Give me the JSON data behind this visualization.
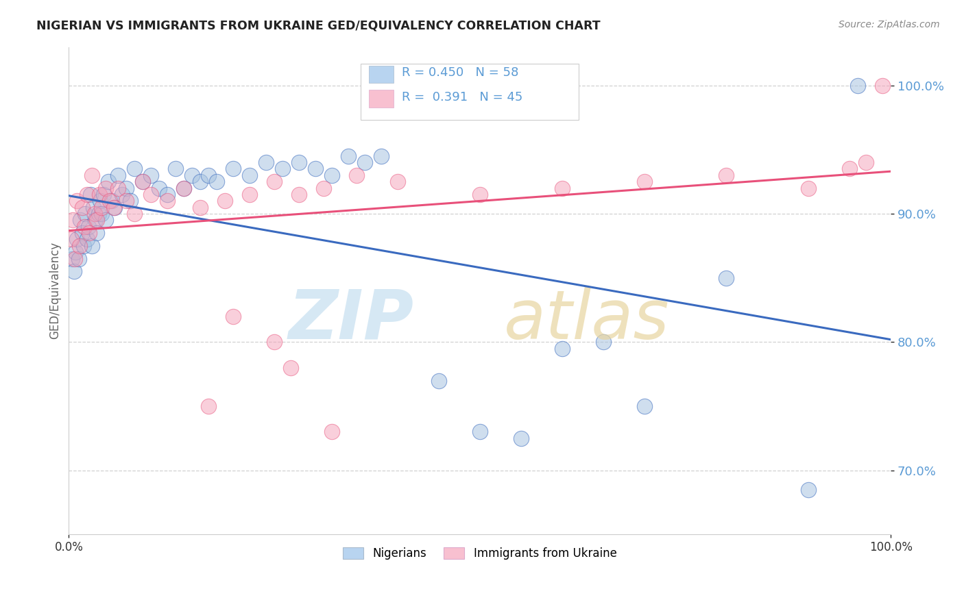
{
  "title": "NIGERIAN VS IMMIGRANTS FROM UKRAINE GED/EQUIVALENCY CORRELATION CHART",
  "source": "Source: ZipAtlas.com",
  "ylabel": "GED/Equivalency",
  "R_nigerian": 0.45,
  "N_nigerian": 58,
  "R_ukraine": 0.391,
  "N_ukraine": 45,
  "nigerian_color": "#a8c4e0",
  "ukraine_color": "#f4a0b8",
  "nigerian_line_color": "#3a6abf",
  "ukraine_line_color": "#e8507a",
  "nigerian_legend_color": "#b8d4f0",
  "ukraine_legend_color": "#f8c0d0",
  "background_color": "#ffffff",
  "grid_color": "#cccccc",
  "ytick_color": "#5b9bd5",
  "xlim": [
    0,
    100
  ],
  "ylim": [
    65,
    103
  ],
  "yticks": [
    70,
    80,
    90,
    100
  ],
  "nigerian_x": [
    0.4,
    0.6,
    0.8,
    1.0,
    1.2,
    1.4,
    1.6,
    1.8,
    2.0,
    2.2,
    2.4,
    2.6,
    2.8,
    3.0,
    3.2,
    3.4,
    3.6,
    3.8,
    4.0,
    4.2,
    4.5,
    4.8,
    5.2,
    5.6,
    6.0,
    6.5,
    7.0,
    7.5,
    8.0,
    9.0,
    10.0,
    11.0,
    12.0,
    13.0,
    14.0,
    15.0,
    16.0,
    17.0,
    18.0,
    20.0,
    22.0,
    24.0,
    26.0,
    28.0,
    30.0,
    32.0,
    34.0,
    36.0,
    38.0,
    45.0,
    50.0,
    55.0,
    60.0,
    65.0,
    70.0,
    80.0,
    90.0,
    96.0
  ],
  "nigerian_y": [
    86.5,
    85.5,
    87.0,
    88.0,
    86.5,
    89.5,
    88.5,
    87.5,
    90.0,
    88.0,
    89.0,
    91.5,
    87.5,
    90.5,
    89.5,
    88.5,
    90.0,
    91.0,
    90.0,
    91.5,
    89.5,
    92.5,
    91.0,
    90.5,
    93.0,
    91.5,
    92.0,
    91.0,
    93.5,
    92.5,
    93.0,
    92.0,
    91.5,
    93.5,
    92.0,
    93.0,
    92.5,
    93.0,
    92.5,
    93.5,
    93.0,
    94.0,
    93.5,
    94.0,
    93.5,
    93.0,
    94.5,
    94.0,
    94.5,
    77.0,
    73.0,
    72.5,
    79.5,
    80.0,
    75.0,
    85.0,
    68.5,
    100.0
  ],
  "ukraine_x": [
    0.3,
    0.5,
    0.7,
    1.0,
    1.3,
    1.6,
    1.9,
    2.2,
    2.5,
    2.8,
    3.1,
    3.4,
    3.7,
    4.0,
    4.5,
    5.0,
    5.5,
    6.0,
    7.0,
    8.0,
    9.0,
    10.0,
    12.0,
    14.0,
    16.0,
    19.0,
    22.0,
    25.0,
    28.0,
    31.0,
    35.0,
    40.0,
    50.0,
    60.0,
    70.0,
    80.0,
    90.0,
    95.0,
    97.0,
    99.0,
    25.0,
    27.0,
    32.0,
    20.0,
    17.0
  ],
  "ukraine_y": [
    88.0,
    89.5,
    86.5,
    91.0,
    87.5,
    90.5,
    89.0,
    91.5,
    88.5,
    93.0,
    90.0,
    89.5,
    91.5,
    90.5,
    92.0,
    91.0,
    90.5,
    92.0,
    91.0,
    90.0,
    92.5,
    91.5,
    91.0,
    92.0,
    90.5,
    91.0,
    91.5,
    92.5,
    91.5,
    92.0,
    93.0,
    92.5,
    91.5,
    92.0,
    92.5,
    93.0,
    92.0,
    93.5,
    94.0,
    100.0,
    80.0,
    78.0,
    73.0,
    82.0,
    75.0
  ]
}
